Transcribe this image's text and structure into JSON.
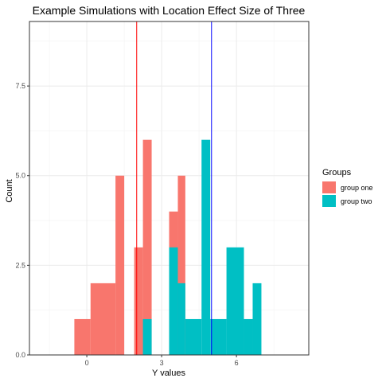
{
  "chart_data": {
    "type": "histogram",
    "title": "Example Simulations with Location Effect Size of Three",
    "xlabel": "Y values",
    "ylabel": "Count",
    "xlim": [
      -2.3,
      8.9
    ],
    "ylim": [
      0,
      9.3
    ],
    "x_ticks": [
      0,
      3,
      6
    ],
    "y_ticks": [
      0.0,
      2.5,
      5.0,
      7.5
    ],
    "y_tick_labels": [
      "0.0",
      "2.5",
      "5.0",
      "7.5"
    ],
    "grid": true,
    "legend": {
      "title": "Groups",
      "placement": "right"
    },
    "series": [
      {
        "name": "group one",
        "color": "#f8766d",
        "bins": [
          {
            "x0": -0.5,
            "x1": 0.15,
            "count": 1
          },
          {
            "x0": 0.15,
            "x1": 1.15,
            "count": 2
          },
          {
            "x0": 1.15,
            "x1": 1.5,
            "count": 5
          },
          {
            "x0": 1.9,
            "x1": 2.25,
            "count": 3
          },
          {
            "x0": 2.25,
            "x1": 2.6,
            "count": 6
          },
          {
            "x0": 3.3,
            "x1": 3.65,
            "count": 4
          },
          {
            "x0": 3.65,
            "x1": 3.95,
            "count": 5
          }
        ]
      },
      {
        "name": "group two",
        "color": "#00bfc4",
        "bins": [
          {
            "x0": 2.25,
            "x1": 2.6,
            "count": 1
          },
          {
            "x0": 3.3,
            "x1": 3.65,
            "count": 3
          },
          {
            "x0": 3.65,
            "x1": 3.95,
            "count": 2
          },
          {
            "x0": 3.95,
            "x1": 4.6,
            "count": 1
          },
          {
            "x0": 4.6,
            "x1": 4.95,
            "count": 6
          },
          {
            "x0": 4.95,
            "x1": 5.6,
            "count": 1
          },
          {
            "x0": 5.6,
            "x1": 6.3,
            "count": 3
          },
          {
            "x0": 6.3,
            "x1": 6.65,
            "count": 1
          },
          {
            "x0": 6.65,
            "x1": 7.0,
            "count": 2
          }
        ]
      }
    ],
    "reference_lines": [
      {
        "x": 2.0,
        "color": "#ff0000"
      },
      {
        "x": 5.0,
        "color": "#0000ff"
      }
    ]
  }
}
